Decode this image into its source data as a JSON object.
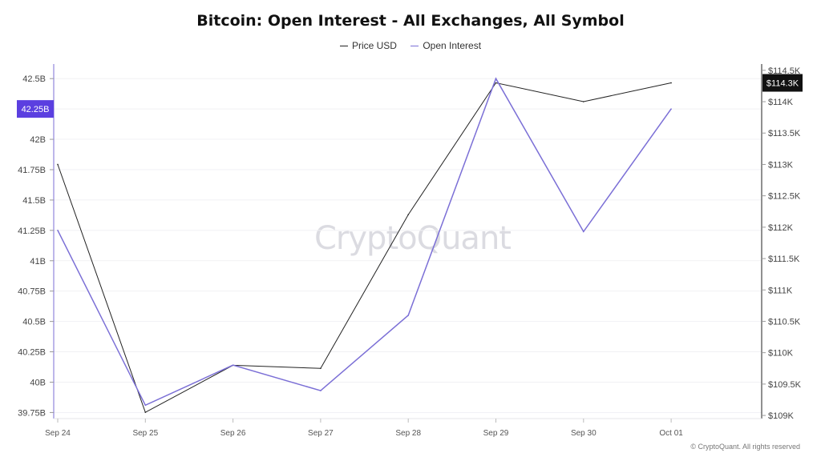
{
  "chart_data": {
    "type": "line",
    "title": "Bitcoin: Open Interest - All Exchanges, All Symbol",
    "categories": [
      "Sep 24",
      "Sep 25",
      "Sep 26",
      "Sep 27",
      "Sep 28",
      "Sep 29",
      "Sep 30",
      "Oct 01"
    ],
    "series": [
      {
        "name": "Price USD",
        "axis": "right",
        "color": "#222222",
        "values": [
          113000,
          109050,
          109800,
          109750,
          112200,
          114300,
          114000,
          114300
        ]
      },
      {
        "name": "Open Interest",
        "axis": "left",
        "color": "#7b6fd6",
        "values": [
          41.25,
          39.81,
          40.14,
          39.93,
          40.55,
          42.5,
          41.24,
          42.25
        ]
      }
    ],
    "y_left": {
      "ticks": [
        "39.75B",
        "40B",
        "40.25B",
        "40.5B",
        "40.75B",
        "41B",
        "41.25B",
        "41.5B",
        "41.75B",
        "42B",
        "42.25B",
        "42.5B"
      ],
      "tick_values": [
        39.75,
        40,
        40.25,
        40.5,
        40.75,
        41,
        41.25,
        41.5,
        41.75,
        42,
        42.25,
        42.5
      ],
      "range": [
        39.7,
        42.62
      ]
    },
    "y_right": {
      "ticks": [
        "$109K",
        "$109.5K",
        "$110K",
        "$110.5K",
        "$111K",
        "$111.5K",
        "$112K",
        "$112.5K",
        "$113K",
        "$113.5K",
        "$114K",
        "$114.5K"
      ],
      "tick_values": [
        109000,
        109500,
        110000,
        110500,
        111000,
        111500,
        112000,
        112500,
        113000,
        113500,
        114000,
        114500
      ],
      "range": [
        108950,
        114600
      ]
    },
    "badges": {
      "left": {
        "label": "42.25B",
        "value": 42.25,
        "color": "#5b3fe0"
      },
      "right": {
        "label": "$114.3K",
        "value": 114300,
        "color": "#111111"
      }
    },
    "grid": true
  },
  "legend": {
    "price_label": "Price USD",
    "oi_label": "Open Interest"
  },
  "watermark": "CryptoQuant",
  "copyright": "© CryptoQuant. All rights reserved"
}
